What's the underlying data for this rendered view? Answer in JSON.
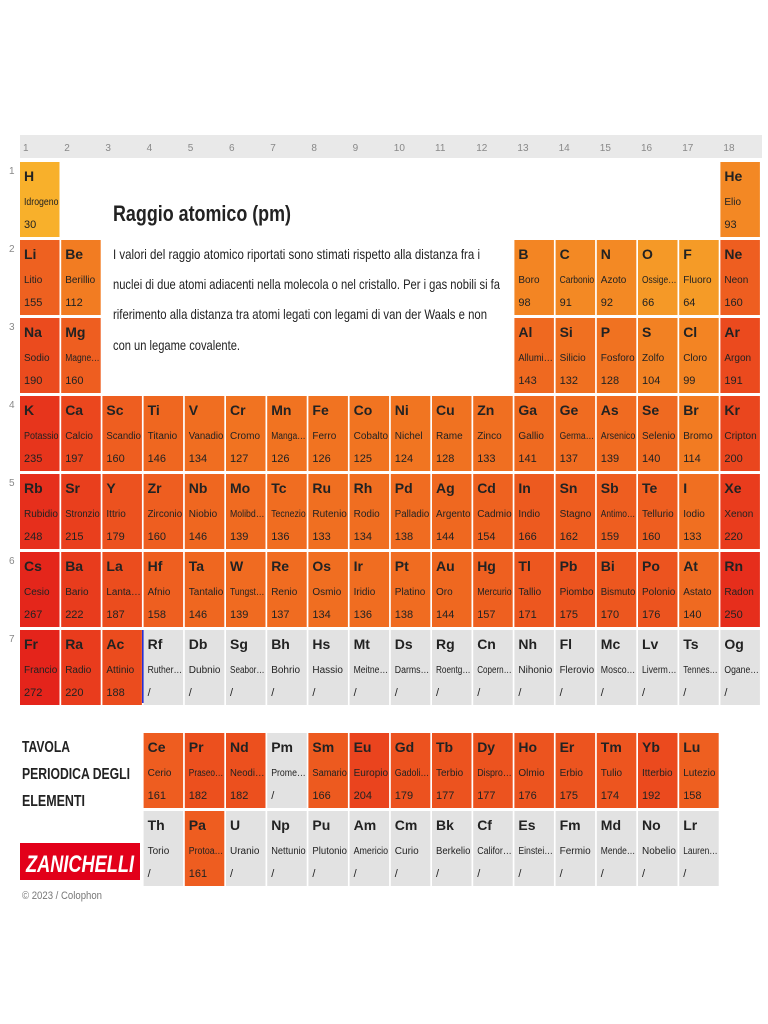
{
  "group_numbers": [
    1,
    2,
    3,
    4,
    5,
    6,
    7,
    8,
    9,
    10,
    11,
    12,
    13,
    14,
    15,
    16,
    17,
    18
  ],
  "period_numbers": [
    1,
    2,
    3,
    4,
    5,
    6,
    7
  ],
  "title": "Raggio atomico (pm)",
  "description": [
    "I valori del raggio atomico riportati sono stimati rispetto alla distanza fra i",
    "nuclei di due atomi adiacenti nella molecola o nel cristallo. Per i gas nobili si fa",
    "riferimento alla distanza tra atomi legati con legami di van der Waals e non",
    "con un legame covalente."
  ],
  "side_title": [
    "TAVOLA",
    "PERIODICA DEGLI",
    "ELEMENTI"
  ],
  "brand": "ZANICHELLI",
  "footer": "© 2023 / Colophon",
  "color_scale": [
    "#f8b02b",
    "#f27d22",
    "#eb4a1e",
    "#e4241b"
  ],
  "missing_color": "#e2e2e2",
  "periods": [
    [
      {
        "symbol": "H",
        "name": "Idrogeno",
        "radius": 30
      },
      null,
      null,
      null,
      null,
      null,
      null,
      null,
      null,
      null,
      null,
      null,
      null,
      null,
      null,
      null,
      null,
      {
        "symbol": "He",
        "name": "Elio",
        "radius": 93
      }
    ],
    [
      {
        "symbol": "Li",
        "name": "Litio",
        "radius": 155
      },
      {
        "symbol": "Be",
        "name": "Berillio",
        "radius": 112
      },
      null,
      null,
      null,
      null,
      null,
      null,
      null,
      null,
      null,
      null,
      {
        "symbol": "B",
        "name": "Boro",
        "radius": 98
      },
      {
        "symbol": "C",
        "name": "Carbonio",
        "radius": 91
      },
      {
        "symbol": "N",
        "name": "Azoto",
        "radius": 92
      },
      {
        "symbol": "O",
        "name": "Ossige…",
        "radius": 66
      },
      {
        "symbol": "F",
        "name": "Fluoro",
        "radius": 64
      },
      {
        "symbol": "Ne",
        "name": "Neon",
        "radius": 160
      }
    ],
    [
      {
        "symbol": "Na",
        "name": "Sodio",
        "radius": 190
      },
      {
        "symbol": "Mg",
        "name": "Magne…",
        "radius": 160
      },
      null,
      null,
      null,
      null,
      null,
      null,
      null,
      null,
      null,
      null,
      {
        "symbol": "Al",
        "name": "Allumi…",
        "radius": 143
      },
      {
        "symbol": "Si",
        "name": "Silicio",
        "radius": 132
      },
      {
        "symbol": "P",
        "name": "Fosforo",
        "radius": 128
      },
      {
        "symbol": "S",
        "name": "Zolfo",
        "radius": 104
      },
      {
        "symbol": "Cl",
        "name": "Cloro",
        "radius": 99
      },
      {
        "symbol": "Ar",
        "name": "Argon",
        "radius": 191
      }
    ],
    [
      {
        "symbol": "K",
        "name": "Potassio",
        "radius": 235
      },
      {
        "symbol": "Ca",
        "name": "Calcio",
        "radius": 197
      },
      {
        "symbol": "Sc",
        "name": "Scandio",
        "radius": 160
      },
      {
        "symbol": "Ti",
        "name": "Titanio",
        "radius": 146
      },
      {
        "symbol": "V",
        "name": "Vanadio",
        "radius": 134
      },
      {
        "symbol": "Cr",
        "name": "Cromo",
        "radius": 127
      },
      {
        "symbol": "Mn",
        "name": "Manga…",
        "radius": 126
      },
      {
        "symbol": "Fe",
        "name": "Ferro",
        "radius": 126
      },
      {
        "symbol": "Co",
        "name": "Cobalto",
        "radius": 125
      },
      {
        "symbol": "Ni",
        "name": "Nichel",
        "radius": 124
      },
      {
        "symbol": "Cu",
        "name": "Rame",
        "radius": 128
      },
      {
        "symbol": "Zn",
        "name": "Zinco",
        "radius": 133
      },
      {
        "symbol": "Ga",
        "name": "Gallio",
        "radius": 141
      },
      {
        "symbol": "Ge",
        "name": "Germa…",
        "radius": 137
      },
      {
        "symbol": "As",
        "name": "Arsenico",
        "radius": 139
      },
      {
        "symbol": "Se",
        "name": "Selenio",
        "radius": 140
      },
      {
        "symbol": "Br",
        "name": "Bromo",
        "radius": 114
      },
      {
        "symbol": "Kr",
        "name": "Cripton",
        "radius": 200
      }
    ],
    [
      {
        "symbol": "Rb",
        "name": "Rubidio",
        "radius": 248
      },
      {
        "symbol": "Sr",
        "name": "Stronzio",
        "radius": 215
      },
      {
        "symbol": "Y",
        "name": "Ittrio",
        "radius": 179
      },
      {
        "symbol": "Zr",
        "name": "Zirconio",
        "radius": 160
      },
      {
        "symbol": "Nb",
        "name": "Niobio",
        "radius": 146
      },
      {
        "symbol": "Mo",
        "name": "Molibd…",
        "radius": 139
      },
      {
        "symbol": "Tc",
        "name": "Tecnezio",
        "radius": 136
      },
      {
        "symbol": "Ru",
        "name": "Rutenio",
        "radius": 133
      },
      {
        "symbol": "Rh",
        "name": "Rodio",
        "radius": 134
      },
      {
        "symbol": "Pd",
        "name": "Palladio",
        "radius": 138
      },
      {
        "symbol": "Ag",
        "name": "Argento",
        "radius": 144
      },
      {
        "symbol": "Cd",
        "name": "Cadmio",
        "radius": 154
      },
      {
        "symbol": "In",
        "name": "Indio",
        "radius": 166
      },
      {
        "symbol": "Sn",
        "name": "Stagno",
        "radius": 162
      },
      {
        "symbol": "Sb",
        "name": "Antimo…",
        "radius": 159
      },
      {
        "symbol": "Te",
        "name": "Tellurio",
        "radius": 160
      },
      {
        "symbol": "I",
        "name": "Iodio",
        "radius": 133
      },
      {
        "symbol": "Xe",
        "name": "Xenon",
        "radius": 220
      }
    ],
    [
      {
        "symbol": "Cs",
        "name": "Cesio",
        "radius": 267
      },
      {
        "symbol": "Ba",
        "name": "Bario",
        "radius": 222
      },
      {
        "symbol": "La",
        "name": "Lanta…",
        "radius": 187
      },
      {
        "symbol": "Hf",
        "name": "Afnio",
        "radius": 158
      },
      {
        "symbol": "Ta",
        "name": "Tantalio",
        "radius": 146
      },
      {
        "symbol": "W",
        "name": "Tungst…",
        "radius": 139
      },
      {
        "symbol": "Re",
        "name": "Renio",
        "radius": 137
      },
      {
        "symbol": "Os",
        "name": "Osmio",
        "radius": 134
      },
      {
        "symbol": "Ir",
        "name": "Iridio",
        "radius": 136
      },
      {
        "symbol": "Pt",
        "name": "Platino",
        "radius": 138
      },
      {
        "symbol": "Au",
        "name": "Oro",
        "radius": 144
      },
      {
        "symbol": "Hg",
        "name": "Mercurio",
        "radius": 157
      },
      {
        "symbol": "Tl",
        "name": "Tallio",
        "radius": 171
      },
      {
        "symbol": "Pb",
        "name": "Piombo",
        "radius": 175
      },
      {
        "symbol": "Bi",
        "name": "Bismuto",
        "radius": 170
      },
      {
        "symbol": "Po",
        "name": "Polonio",
        "radius": 176
      },
      {
        "symbol": "At",
        "name": "Astato",
        "radius": 140
      },
      {
        "symbol": "Rn",
        "name": "Radon",
        "radius": 250
      }
    ],
    [
      {
        "symbol": "Fr",
        "name": "Francio",
        "radius": 272
      },
      {
        "symbol": "Ra",
        "name": "Radio",
        "radius": 220
      },
      {
        "symbol": "Ac",
        "name": "Attinio",
        "radius": 188
      },
      {
        "symbol": "Rf",
        "name": "Ruther…",
        "radius": "/"
      },
      {
        "symbol": "Db",
        "name": "Dubnio",
        "radius": "/"
      },
      {
        "symbol": "Sg",
        "name": "Seabor…",
        "radius": "/"
      },
      {
        "symbol": "Bh",
        "name": "Bohrio",
        "radius": "/"
      },
      {
        "symbol": "Hs",
        "name": "Hassio",
        "radius": "/"
      },
      {
        "symbol": "Mt",
        "name": "Meitne…",
        "radius": "/"
      },
      {
        "symbol": "Ds",
        "name": "Darms…",
        "radius": "/"
      },
      {
        "symbol": "Rg",
        "name": "Roentg…",
        "radius": "/"
      },
      {
        "symbol": "Cn",
        "name": "Copern…",
        "radius": "/"
      },
      {
        "symbol": "Nh",
        "name": "Nihonio",
        "radius": "/"
      },
      {
        "symbol": "Fl",
        "name": "Flerovio",
        "radius": "/"
      },
      {
        "symbol": "Mc",
        "name": "Mosco…",
        "radius": "/"
      },
      {
        "symbol": "Lv",
        "name": "Liverm…",
        "radius": "/"
      },
      {
        "symbol": "Ts",
        "name": "Tennes…",
        "radius": "/"
      },
      {
        "symbol": "Og",
        "name": "Ogane…",
        "radius": "/"
      }
    ]
  ],
  "f_block": [
    [
      {
        "symbol": "Ce",
        "name": "Cerio",
        "radius": 161
      },
      {
        "symbol": "Pr",
        "name": "Praseo…",
        "radius": 182
      },
      {
        "symbol": "Nd",
        "name": "Neodi…",
        "radius": 182
      },
      {
        "symbol": "Pm",
        "name": "Prome…",
        "radius": "/"
      },
      {
        "symbol": "Sm",
        "name": "Samario",
        "radius": 166
      },
      {
        "symbol": "Eu",
        "name": "Europio",
        "radius": 204
      },
      {
        "symbol": "Gd",
        "name": "Gadoli…",
        "radius": 179
      },
      {
        "symbol": "Tb",
        "name": "Terbio",
        "radius": 177
      },
      {
        "symbol": "Dy",
        "name": "Dispro…",
        "radius": 177
      },
      {
        "symbol": "Ho",
        "name": "Olmio",
        "radius": 176
      },
      {
        "symbol": "Er",
        "name": "Erbio",
        "radius": 175
      },
      {
        "symbol": "Tm",
        "name": "Tulio",
        "radius": 174
      },
      {
        "symbol": "Yb",
        "name": "Itterbio",
        "radius": 192
      },
      {
        "symbol": "Lu",
        "name": "Lutezio",
        "radius": 158
      }
    ],
    [
      {
        "symbol": "Th",
        "name": "Torio",
        "radius": "/"
      },
      {
        "symbol": "Pa",
        "name": "Protoa…",
        "radius": 161
      },
      {
        "symbol": "U",
        "name": "Uranio",
        "radius": "/"
      },
      {
        "symbol": "Np",
        "name": "Nettunio",
        "radius": "/"
      },
      {
        "symbol": "Pu",
        "name": "Plutonio",
        "radius": "/"
      },
      {
        "symbol": "Am",
        "name": "Americio",
        "radius": "/"
      },
      {
        "symbol": "Cm",
        "name": "Curio",
        "radius": "/"
      },
      {
        "symbol": "Bk",
        "name": "Berkelio",
        "radius": "/"
      },
      {
        "symbol": "Cf",
        "name": "Califor…",
        "radius": "/"
      },
      {
        "symbol": "Es",
        "name": "Einstei…",
        "radius": "/"
      },
      {
        "symbol": "Fm",
        "name": "Fermio",
        "radius": "/"
      },
      {
        "symbol": "Md",
        "name": "Mende…",
        "radius": "/"
      },
      {
        "symbol": "No",
        "name": "Nobelio",
        "radius": "/"
      },
      {
        "symbol": "Lr",
        "name": "Lauren…",
        "radius": "/"
      }
    ]
  ]
}
